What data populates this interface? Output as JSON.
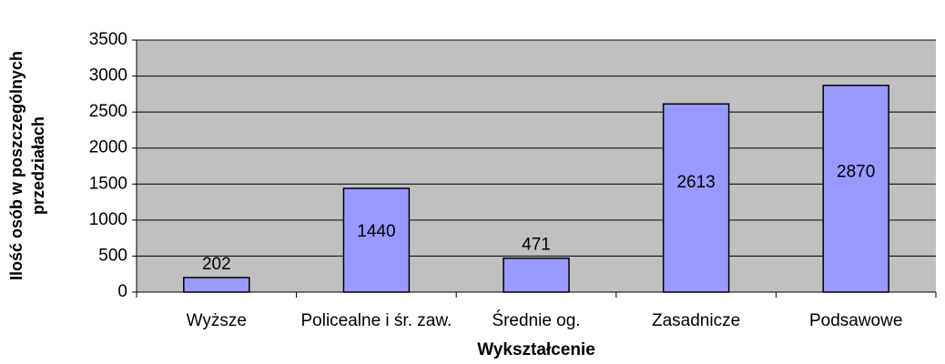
{
  "chart_data": {
    "type": "bar",
    "title": null,
    "x_label": "Wykształcenie",
    "y_label": "Ilość osób w poszczególnych przedziałach",
    "categories": [
      "Wyższe",
      "Policealne i śr. zaw.",
      "Średnie og.",
      "Zasadnicze",
      "Podsawowe"
    ],
    "values": [
      202,
      1440,
      471,
      2613,
      2870
    ],
    "color": "#9999ff",
    "ylim": [
      0,
      3500
    ],
    "yticks": [
      0,
      500,
      1000,
      1500,
      2000,
      2500,
      3000,
      3500
    ],
    "grid": true
  }
}
